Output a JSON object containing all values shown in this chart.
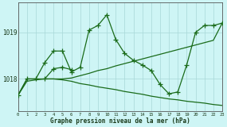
{
  "xlabel": "Graphe pression niveau de la mer (hPa)",
  "background_color": "#cef5f5",
  "line_color": "#1a6b1a",
  "hours": [
    0,
    1,
    2,
    3,
    4,
    5,
    6,
    7,
    8,
    9,
    10,
    11,
    12,
    13,
    14,
    15,
    16,
    17,
    18,
    19,
    20,
    21,
    22,
    23
  ],
  "series1": [
    1017.65,
    1018.0,
    1018.0,
    1018.35,
    1018.6,
    1018.6,
    1018.15,
    1018.25,
    1019.05,
    1019.15,
    1019.38,
    1018.85,
    1018.55,
    1018.4,
    1018.3,
    1018.18,
    1017.88,
    1017.68,
    1017.72,
    1018.3,
    1019.0,
    1019.15,
    1019.15,
    1019.2
  ],
  "series2_x": [
    3,
    4,
    5,
    6
  ],
  "series2_y": [
    1018.0,
    1018.22,
    1018.25,
    1018.2
  ],
  "series3": [
    1017.65,
    1018.0,
    1018.0,
    1018.0,
    1018.0,
    1018.0,
    1018.02,
    1018.07,
    1018.12,
    1018.18,
    1018.22,
    1018.28,
    1018.33,
    1018.38,
    1018.43,
    1018.48,
    1018.53,
    1018.58,
    1018.63,
    1018.68,
    1018.73,
    1018.78,
    1018.83,
    1019.2
  ],
  "series4": [
    1017.65,
    1017.95,
    1017.98,
    1018.0,
    1018.0,
    1017.98,
    1017.95,
    1017.9,
    1017.87,
    1017.83,
    1017.8,
    1017.77,
    1017.73,
    1017.7,
    1017.67,
    1017.63,
    1017.6,
    1017.57,
    1017.55,
    1017.52,
    1017.5,
    1017.48,
    1017.45,
    1017.43
  ],
  "yticks": [
    1018,
    1019
  ],
  "ylim": [
    1017.3,
    1019.65
  ],
  "xlim": [
    0,
    23
  ]
}
